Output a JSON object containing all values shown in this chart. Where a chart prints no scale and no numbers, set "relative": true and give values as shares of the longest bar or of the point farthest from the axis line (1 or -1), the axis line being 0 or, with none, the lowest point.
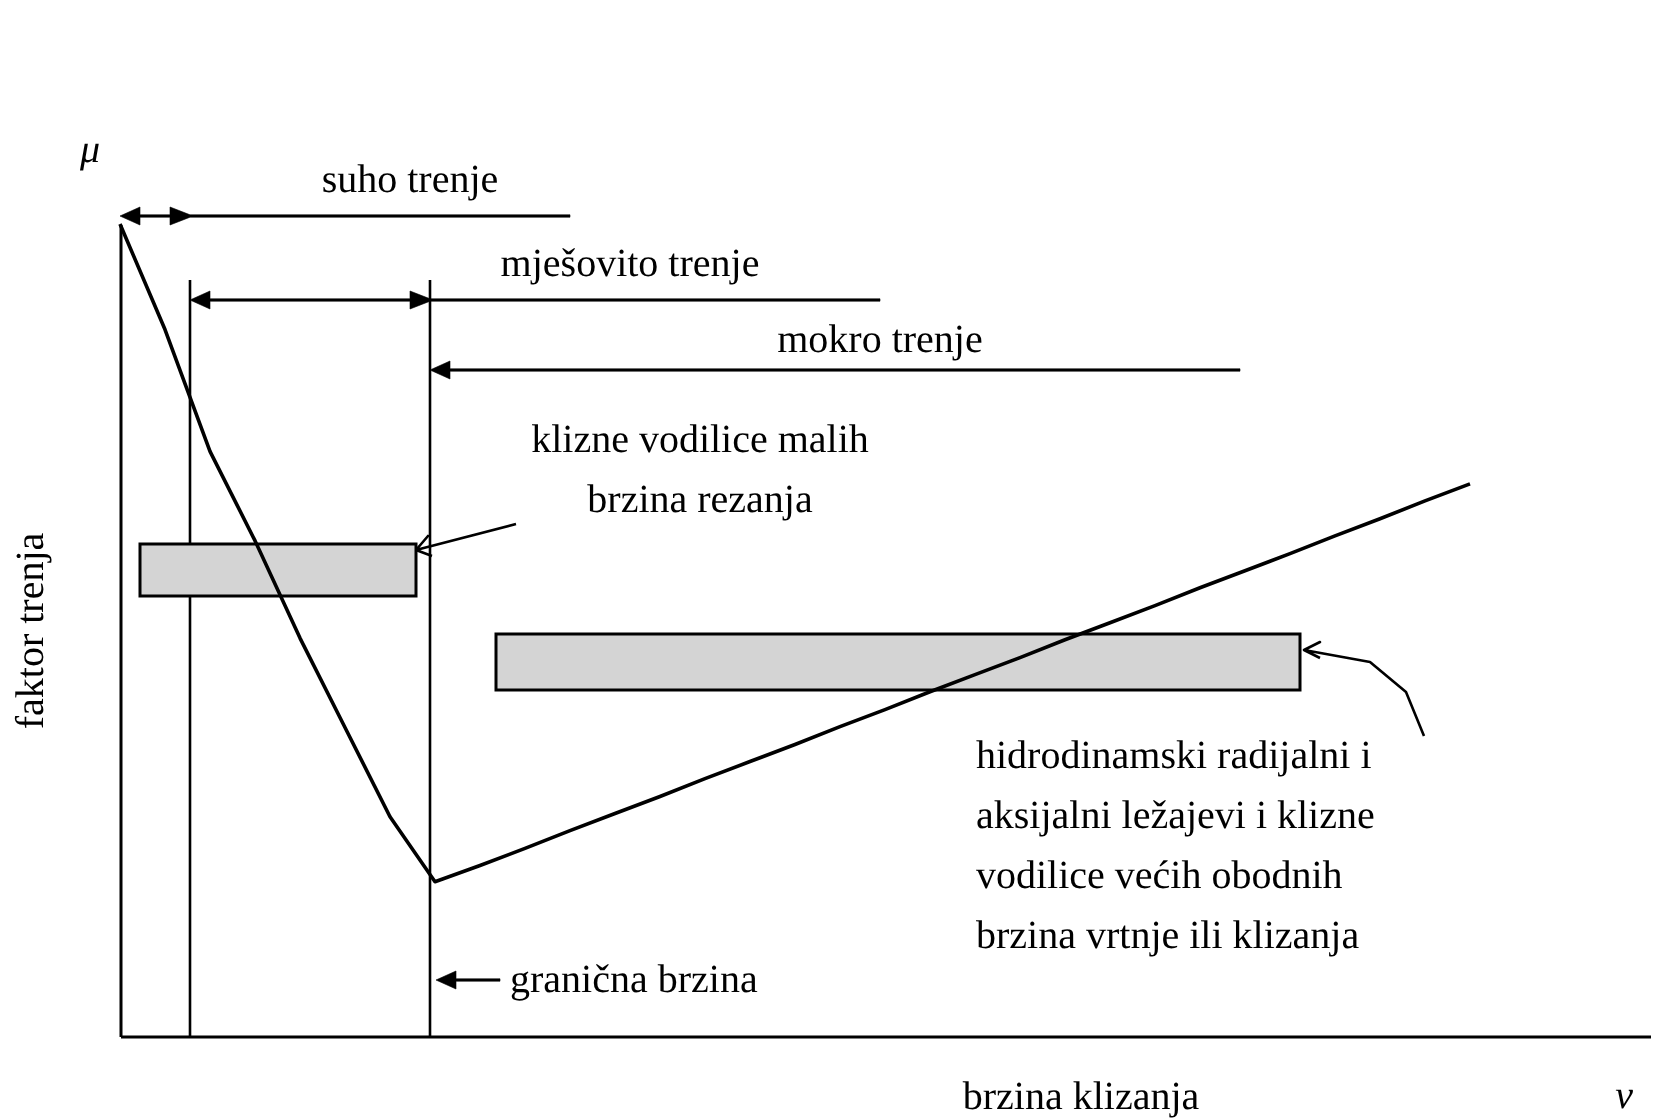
{
  "chart_data": {
    "type": "line",
    "relative": true,
    "xlabel": "brzina klizanja",
    "ylabel": "faktor trenja",
    "categories": [
      null,
      null,
      null,
      null,
      null,
      null,
      null,
      null,
      null,
      null,
      null,
      null,
      null,
      null,
      null,
      null,
      null,
      null,
      null,
      null,
      null,
      null,
      null,
      null,
      null,
      null,
      null,
      null,
      null,
      null,
      null,
      null,
      null,
      null,
      null
    ],
    "series": [
      {
        "color": "#000000",
        "values": [
          1,
          0.87,
          0.72,
          0.61,
          0.49,
          0.38,
          0.27,
          0.19,
          0.21,
          0.231,
          0.253,
          0.274,
          0.295,
          0.317,
          0.338,
          0.359,
          0.381,
          0.402,
          0.424,
          0.445,
          0.466,
          0.488,
          0.509,
          0.53,
          0.552,
          0.573,
          0.594,
          0.616,
          0.637,
          0.659,
          0.68,
          null,
          null,
          null,
          null
        ]
      }
    ],
    "tick_labels": false,
    "grid": false,
    "marker": "none",
    "line_style": "solid",
    "annotations": [
      "μ",
      "suho trenje",
      "mješovito trenje",
      "mokro trenje",
      "klizne vodilice malih\nbrzina rezanja",
      "hidrodinamski radijalni i\naksijalni ležajevi i klizne\nvodilice većih obodnih\nbrzina vrtnje ili klizanja",
      "granična brzina",
      "v"
    ]
  }
}
